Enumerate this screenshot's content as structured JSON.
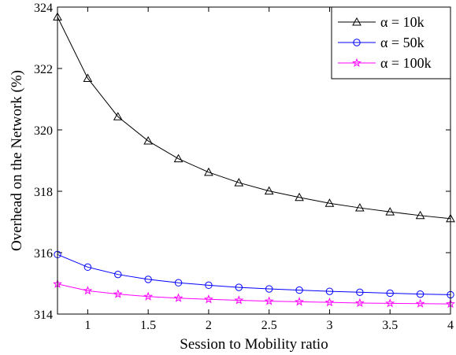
{
  "chart_data": {
    "type": "line",
    "xlabel": "Session to Mobility ratio",
    "ylabel": "Overhead on the Network (%)",
    "xlim": [
      0.75,
      4
    ],
    "ylim": [
      314,
      324
    ],
    "x_ticks": [
      1,
      1.5,
      2,
      2.5,
      3,
      3.5,
      4
    ],
    "x_tick_labels": [
      "1",
      "1.5",
      "2",
      "2.5",
      "3",
      "3.5",
      "4"
    ],
    "y_ticks": [
      314,
      316,
      318,
      320,
      322,
      324
    ],
    "y_tick_labels": [
      "314",
      "316",
      "318",
      "320",
      "322",
      "324"
    ],
    "grid": false,
    "legend_position": "top-right",
    "x": [
      0.75,
      1.0,
      1.25,
      1.5,
      1.75,
      2.0,
      2.25,
      2.5,
      2.75,
      3.0,
      3.25,
      3.5,
      3.75,
      4.0
    ],
    "series": [
      {
        "name": "α = 10k",
        "color": "#000000",
        "marker": "triangle",
        "values": [
          323.68,
          321.68,
          320.43,
          319.64,
          319.06,
          318.62,
          318.28,
          318.01,
          317.8,
          317.61,
          317.46,
          317.33,
          317.21,
          317.11
        ]
      },
      {
        "name": "α = 50k",
        "color": "#0000ff",
        "marker": "circle",
        "values": [
          315.94,
          315.53,
          315.29,
          315.13,
          315.02,
          314.94,
          314.87,
          314.82,
          314.78,
          314.74,
          314.71,
          314.68,
          314.65,
          314.63
        ]
      },
      {
        "name": "α = 100k",
        "color": "#ff00ff",
        "marker": "star",
        "values": [
          314.98,
          314.76,
          314.65,
          314.57,
          314.52,
          314.48,
          314.45,
          314.42,
          314.4,
          314.38,
          314.36,
          314.35,
          314.34,
          314.33
        ]
      }
    ]
  }
}
